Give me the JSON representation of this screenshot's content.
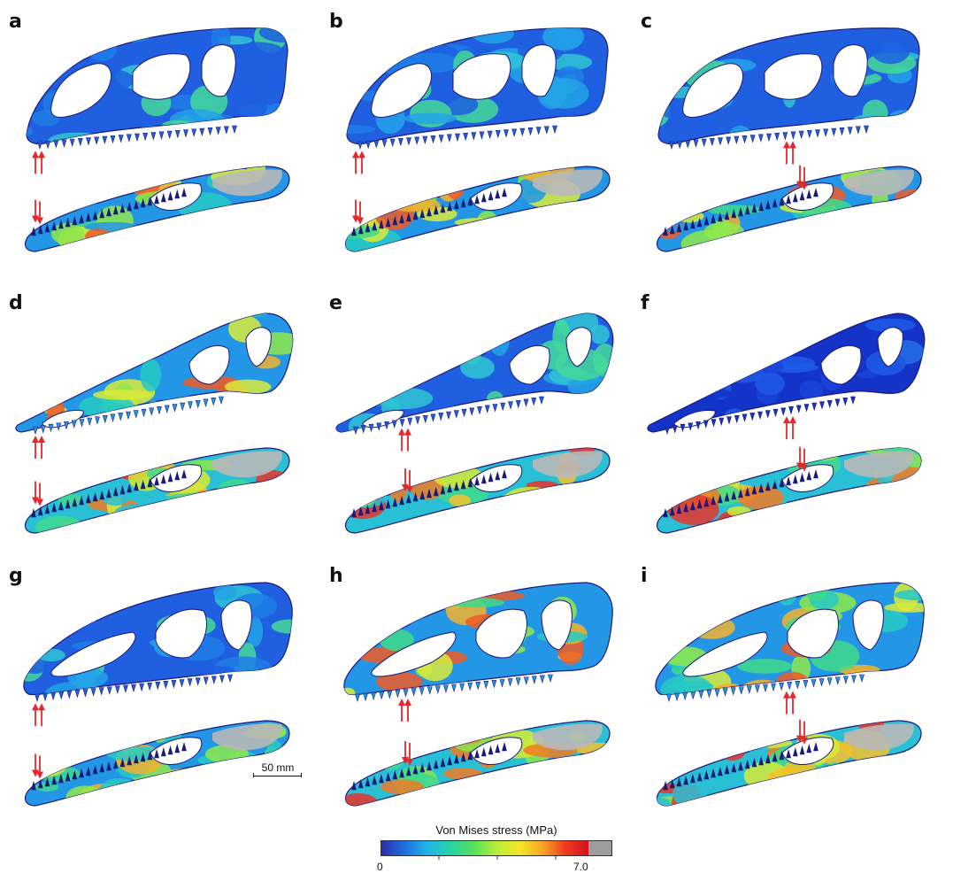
{
  "panels": [
    {
      "id": "a",
      "label": "a",
      "skull": "eoraptor",
      "skull_stress": "low",
      "jaw_stress": "med",
      "bite": "anterior"
    },
    {
      "id": "b",
      "label": "b",
      "skull": "eoraptor",
      "skull_stress": "low",
      "jaw_stress": "med",
      "bite": "anterior"
    },
    {
      "id": "c",
      "label": "c",
      "skull": "eoraptor",
      "skull_stress": "low",
      "jaw_stress": "med",
      "bite": "posterior"
    },
    {
      "id": "d",
      "label": "d",
      "skull": "elongate",
      "skull_stress": "med",
      "jaw_stress": "high",
      "bite": "anterior"
    },
    {
      "id": "e",
      "label": "e",
      "skull": "elongate",
      "skull_stress": "low",
      "jaw_stress": "high",
      "bite": "middle"
    },
    {
      "id": "f",
      "label": "f",
      "skull": "elongate",
      "skull_stress": "verylow",
      "jaw_stress": "high",
      "bite": "posterior"
    },
    {
      "id": "g",
      "label": "g",
      "skull": "tall",
      "skull_stress": "low",
      "jaw_stress": "med",
      "bite": "anterior"
    },
    {
      "id": "h",
      "label": "h",
      "skull": "tall",
      "skull_stress": "med",
      "jaw_stress": "high",
      "bite": "middle"
    },
    {
      "id": "i",
      "label": "i",
      "skull": "tall",
      "skull_stress": "med",
      "jaw_stress": "high",
      "bite": "posterior"
    }
  ],
  "scale_bar": {
    "label": "50 mm"
  },
  "legend": {
    "title": "Von Mises stress (MPa)",
    "min_label": "0",
    "max_label": "7.0",
    "colors": [
      "#2a2fa8",
      "#1f6fe0",
      "#21b4e6",
      "#27d3a6",
      "#55e05a",
      "#b6ee3a",
      "#f5e62a",
      "#f5a623",
      "#ef3b22",
      "#d6101b"
    ],
    "saturation_color": "#9e9e9e"
  },
  "colors": {
    "arrow": "#e5262b",
    "outline": "#1a1a7a",
    "saturated": "#b8b8b8"
  }
}
